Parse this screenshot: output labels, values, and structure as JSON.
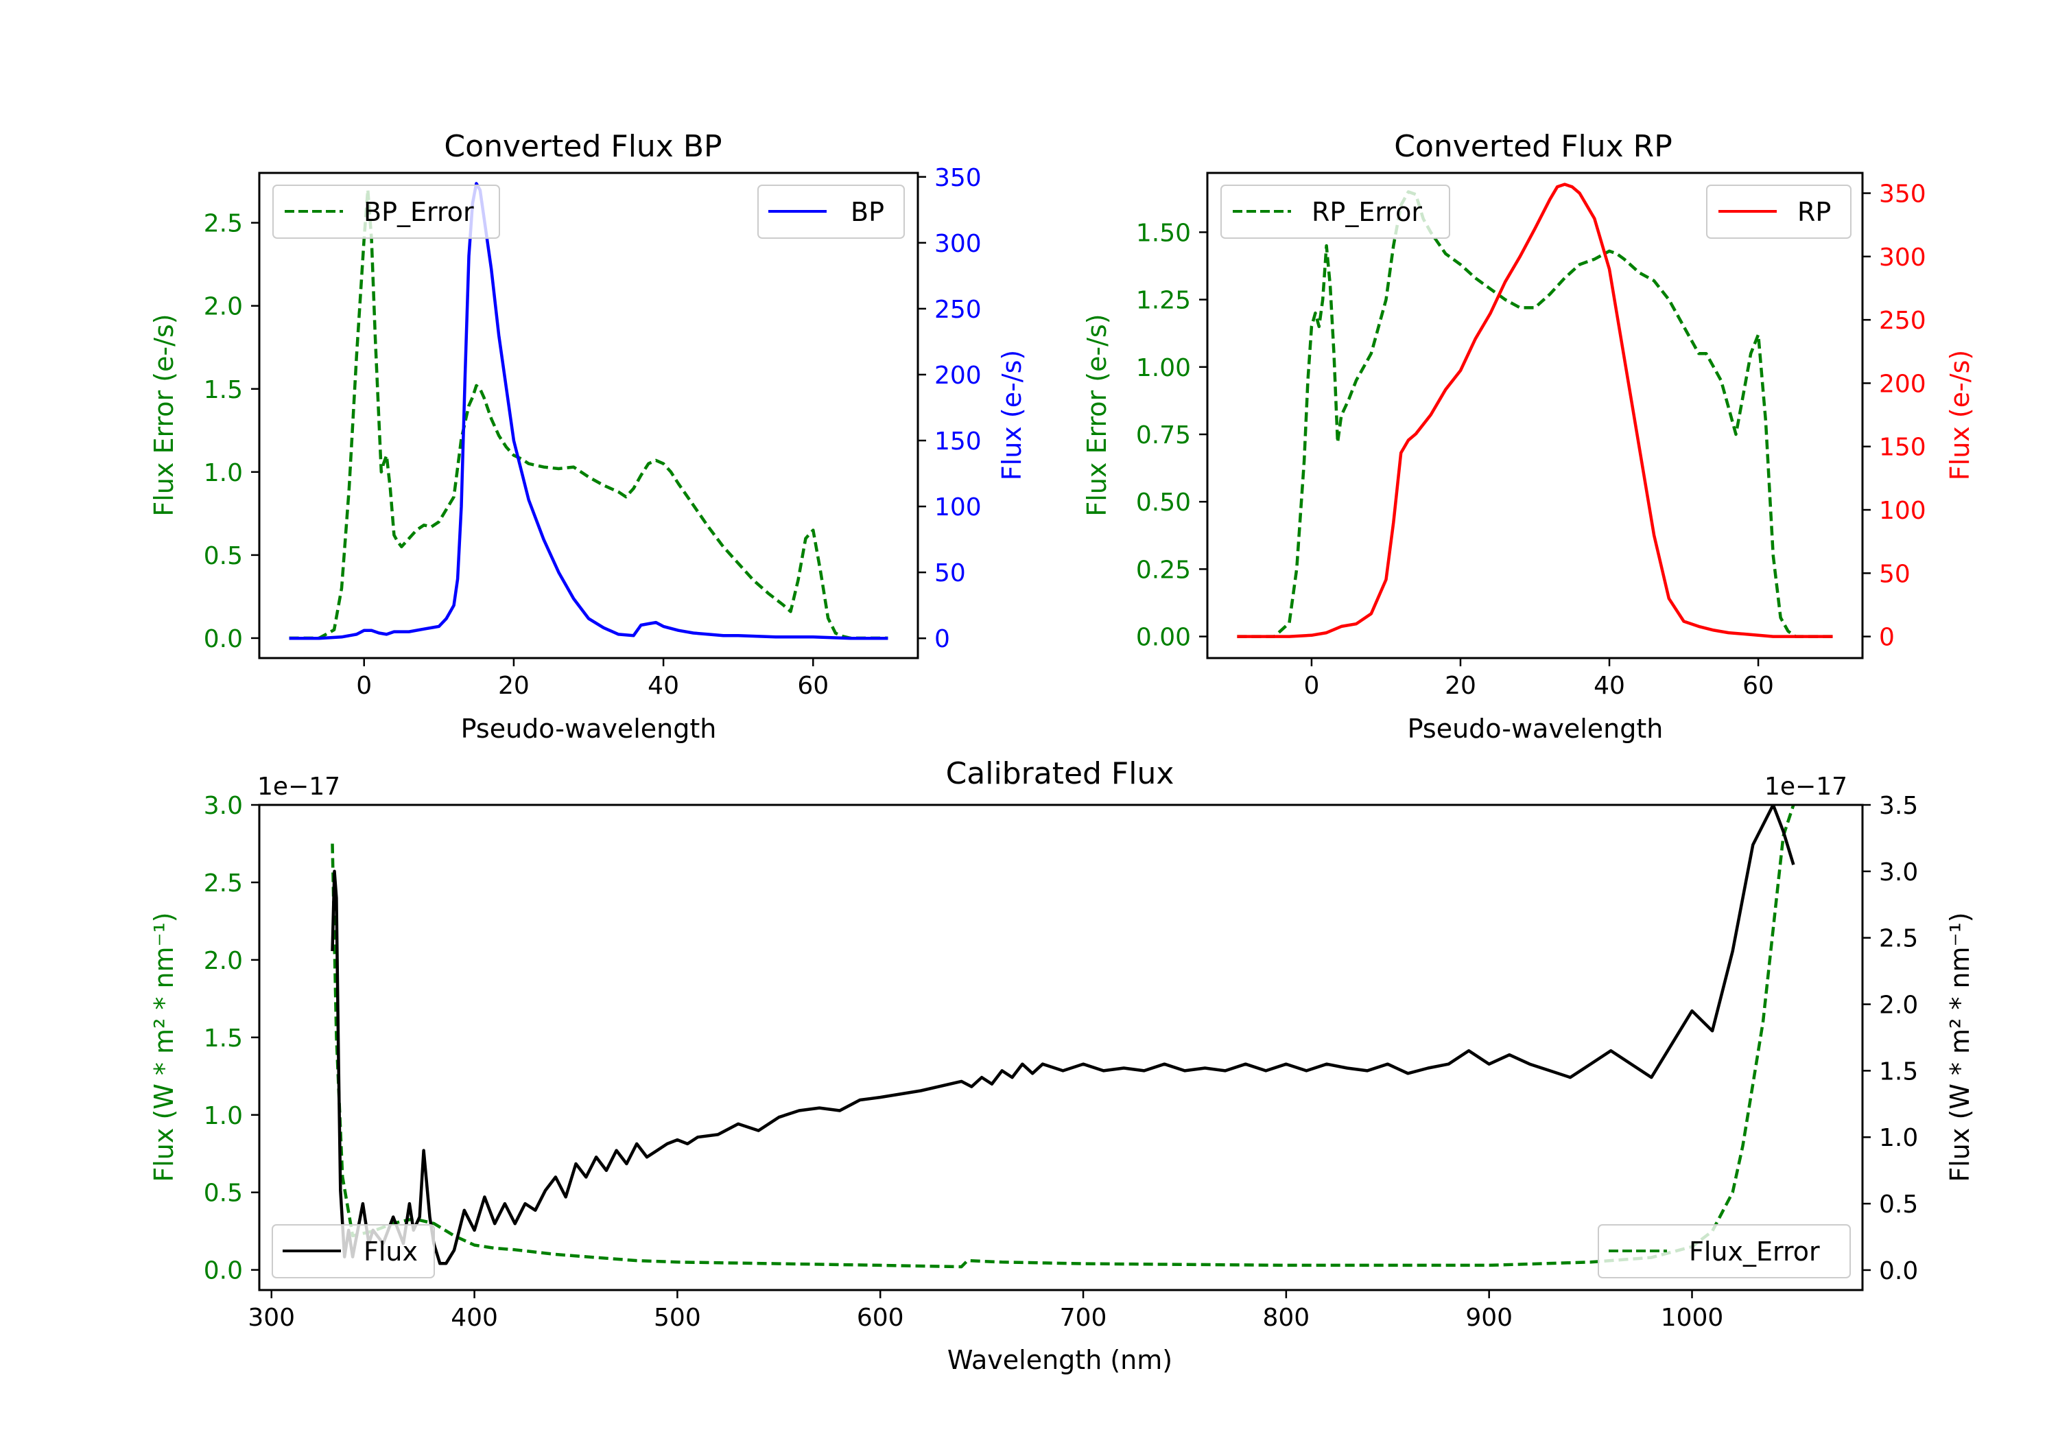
{
  "colors": {
    "bp": "#0000ff",
    "rp": "#ff0000",
    "error": "#008000",
    "flux": "#000000"
  },
  "chart_data": [
    {
      "type": "line",
      "title": "Converted Flux BP",
      "xlabel": "Pseudo-wavelength",
      "ylabel_left": "Flux Error (e-/s)",
      "ylabel_right": "Flux (e-/s)",
      "xlim": [
        -14,
        74
      ],
      "ylim_left": [
        -0.12,
        2.8
      ],
      "ylim_right": [
        -15,
        353
      ],
      "xticks": [
        0,
        20,
        40,
        60
      ],
      "yticks_left": [
        "0.0",
        "0.5",
        "1.0",
        "1.5",
        "2.0",
        "2.5"
      ],
      "yticks_right": [
        "0",
        "50",
        "100",
        "150",
        "200",
        "250",
        "300",
        "350"
      ],
      "legend_left": "BP_Error",
      "legend_right": "BP",
      "series": [
        {
          "name": "BP_Error",
          "axis": "left",
          "style": "dashed",
          "x": [
            -10,
            -6,
            -4,
            -3,
            -2,
            -1,
            0,
            0.5,
            1,
            1.5,
            2,
            2.3,
            2.6,
            3,
            3.5,
            4,
            4.5,
            5,
            6,
            7,
            8,
            9,
            10,
            12,
            13,
            14,
            14.5,
            15,
            15.5,
            16,
            17,
            18,
            19,
            20,
            21,
            22,
            24,
            26,
            28,
            30,
            32,
            34,
            35,
            36,
            37,
            38,
            39,
            40,
            41,
            42,
            44,
            46,
            48,
            50,
            52,
            54,
            56,
            57,
            58,
            59,
            60,
            61,
            62,
            63,
            64,
            65,
            66,
            70
          ],
          "y": [
            0,
            0,
            0.05,
            0.3,
            0.9,
            1.7,
            2.4,
            2.7,
            2.4,
            1.8,
            1.3,
            1.0,
            1.05,
            1.1,
            0.9,
            0.62,
            0.58,
            0.55,
            0.6,
            0.65,
            0.68,
            0.67,
            0.7,
            0.85,
            1.2,
            1.4,
            1.45,
            1.52,
            1.5,
            1.45,
            1.32,
            1.22,
            1.15,
            1.1,
            1.08,
            1.05,
            1.03,
            1.02,
            1.03,
            0.97,
            0.92,
            0.88,
            0.85,
            0.9,
            0.98,
            1.05,
            1.07,
            1.05,
            1.0,
            0.93,
            0.8,
            0.67,
            0.55,
            0.45,
            0.35,
            0.27,
            0.2,
            0.16,
            0.35,
            0.6,
            0.65,
            0.4,
            0.12,
            0.03,
            0.01,
            0,
            0,
            0
          ]
        },
        {
          "name": "BP",
          "axis": "right",
          "style": "solid",
          "x": [
            -10,
            -6,
            -3,
            -1,
            0,
            1,
            2,
            3,
            4,
            6,
            8,
            10,
            11,
            12,
            12.5,
            13,
            13.5,
            14,
            14.5,
            15,
            15.5,
            16,
            17,
            18,
            19,
            20,
            22,
            24,
            26,
            28,
            30,
            32,
            34,
            36,
            37,
            38,
            39,
            40,
            42,
            44,
            46,
            48,
            50,
            55,
            60,
            65,
            70
          ],
          "y": [
            0,
            0,
            1,
            3,
            6,
            6,
            4,
            3,
            5,
            5,
            7,
            9,
            15,
            25,
            45,
            100,
            200,
            290,
            330,
            345,
            340,
            320,
            280,
            230,
            190,
            150,
            105,
            75,
            50,
            30,
            15,
            8,
            3,
            2,
            10,
            11,
            12,
            9,
            6,
            4,
            3,
            2,
            2,
            1,
            1,
            0,
            0
          ]
        }
      ]
    },
    {
      "type": "line",
      "title": "Converted Flux RP",
      "xlabel": "Pseudo-wavelength",
      "ylabel_left": "Flux Error (e-/s)",
      "ylabel_right": "Flux (e-/s)",
      "xlim": [
        -14,
        74
      ],
      "ylim_left": [
        -0.08,
        1.72
      ],
      "ylim_right": [
        -17,
        366
      ],
      "xticks": [
        0,
        20,
        40,
        60
      ],
      "yticks_left": [
        "0.00",
        "0.25",
        "0.50",
        "0.75",
        "1.00",
        "1.25",
        "1.50"
      ],
      "yticks_right": [
        "0",
        "50",
        "100",
        "150",
        "200",
        "250",
        "300",
        "350"
      ],
      "legend_left": "RP_Error",
      "legend_right": "RP",
      "series": [
        {
          "name": "RP_Error",
          "axis": "left",
          "style": "dashed",
          "x": [
            -10,
            -5,
            -3,
            -2,
            -1,
            -0.5,
            0,
            0.5,
            1,
            1.5,
            2,
            2.5,
            3,
            3.5,
            4,
            4.5,
            5,
            6,
            8,
            10,
            11,
            12,
            13,
            14,
            15,
            16,
            18,
            20,
            22,
            24,
            26,
            28,
            30,
            32,
            34,
            36,
            38,
            40,
            41,
            42,
            44,
            46,
            48,
            50,
            52,
            53,
            54,
            55,
            56,
            57,
            58,
            59,
            60,
            61,
            62,
            63,
            64,
            65,
            70
          ],
          "y": [
            0,
            0,
            0.05,
            0.25,
            0.65,
            0.95,
            1.15,
            1.2,
            1.15,
            1.25,
            1.45,
            1.3,
            1.05,
            0.72,
            0.82,
            0.85,
            0.88,
            0.95,
            1.05,
            1.25,
            1.45,
            1.6,
            1.65,
            1.64,
            1.55,
            1.5,
            1.42,
            1.38,
            1.33,
            1.29,
            1.25,
            1.22,
            1.22,
            1.27,
            1.33,
            1.38,
            1.4,
            1.43,
            1.42,
            1.4,
            1.35,
            1.32,
            1.25,
            1.15,
            1.05,
            1.05,
            1.0,
            0.95,
            0.85,
            0.75,
            0.9,
            1.05,
            1.12,
            0.8,
            0.3,
            0.07,
            0.02,
            0,
            0
          ]
        },
        {
          "name": "RP",
          "axis": "right",
          "style": "solid",
          "x": [
            -10,
            -3,
            0,
            2,
            4,
            6,
            8,
            10,
            11,
            12,
            13,
            14,
            16,
            18,
            20,
            22,
            24,
            26,
            28,
            30,
            32,
            33,
            34,
            35,
            36,
            38,
            40,
            42,
            44,
            46,
            48,
            50,
            52,
            54,
            56,
            58,
            60,
            62,
            64,
            66,
            70
          ],
          "y": [
            0,
            0,
            1,
            3,
            8,
            10,
            18,
            45,
            90,
            145,
            155,
            160,
            175,
            195,
            210,
            235,
            255,
            280,
            300,
            322,
            345,
            355,
            357,
            355,
            350,
            330,
            290,
            220,
            150,
            80,
            30,
            12,
            8,
            5,
            3,
            2,
            1,
            0,
            0,
            0,
            0
          ]
        }
      ]
    },
    {
      "type": "line",
      "title": "Calibrated Flux",
      "xlabel": "Wavelength (nm)",
      "ylabel_left": "Flux (W * m² * nm⁻¹)",
      "ylabel_right": "Flux (W * m² * nm⁻¹)",
      "offset_left": "1e−17",
      "offset_right": "1e−17",
      "xlim": [
        294,
        1084
      ],
      "ylim_left": [
        -0.13,
        3.0
      ],
      "ylim_right": [
        -0.15,
        3.5
      ],
      "xticks": [
        300,
        400,
        500,
        600,
        700,
        800,
        900,
        1000
      ],
      "yticks_left": [
        "0.0",
        "0.5",
        "1.0",
        "1.5",
        "2.0",
        "2.5",
        "3.0"
      ],
      "yticks_right": [
        "0.0",
        "0.5",
        "1.0",
        "1.5",
        "2.0",
        "2.5",
        "3.0",
        "3.5"
      ],
      "legend_left": "Flux",
      "legend_right": "Flux_Error",
      "series": [
        {
          "name": "Flux_Error",
          "axis": "left",
          "style": "dashed",
          "x": [
            330,
            332,
            335,
            340,
            350,
            360,
            370,
            380,
            390,
            400,
            410,
            420,
            440,
            460,
            480,
            500,
            550,
            600,
            640,
            643,
            660,
            700,
            800,
            900,
            950,
            980,
            1000,
            1010,
            1020,
            1025,
            1030,
            1035,
            1040,
            1045,
            1050
          ],
          "y": [
            2.75,
            1.5,
            0.6,
            0.22,
            0.25,
            0.3,
            0.33,
            0.3,
            0.22,
            0.16,
            0.14,
            0.13,
            0.1,
            0.08,
            0.06,
            0.05,
            0.04,
            0.03,
            0.02,
            0.06,
            0.05,
            0.04,
            0.03,
            0.03,
            0.05,
            0.08,
            0.15,
            0.25,
            0.5,
            0.8,
            1.2,
            1.6,
            2.2,
            2.8,
            3.0
          ]
        },
        {
          "name": "Flux",
          "axis": "right",
          "style": "solid",
          "x": [
            330,
            331,
            332,
            333,
            334,
            336,
            338,
            340,
            345,
            348,
            350,
            355,
            360,
            365,
            368,
            370,
            373,
            375,
            378,
            380,
            383,
            386,
            390,
            395,
            400,
            405,
            410,
            415,
            420,
            425,
            430,
            435,
            440,
            445,
            450,
            455,
            460,
            465,
            470,
            475,
            480,
            485,
            490,
            495,
            500,
            505,
            510,
            520,
            530,
            540,
            550,
            560,
            570,
            580,
            590,
            600,
            620,
            640,
            645,
            650,
            655,
            660,
            665,
            670,
            675,
            680,
            690,
            700,
            710,
            720,
            730,
            740,
            750,
            760,
            770,
            780,
            790,
            800,
            810,
            820,
            830,
            840,
            850,
            860,
            870,
            880,
            890,
            900,
            910,
            920,
            930,
            940,
            950,
            960,
            970,
            980,
            990,
            1000,
            1010,
            1020,
            1030,
            1040,
            1045,
            1050
          ],
          "y": [
            2.4,
            3.0,
            2.8,
            1.6,
            0.6,
            0.1,
            0.3,
            0.1,
            0.5,
            0.2,
            0.3,
            0.2,
            0.4,
            0.2,
            0.5,
            0.3,
            0.4,
            0.9,
            0.4,
            0.2,
            0.05,
            0.05,
            0.15,
            0.45,
            0.3,
            0.55,
            0.35,
            0.5,
            0.35,
            0.5,
            0.45,
            0.6,
            0.7,
            0.55,
            0.8,
            0.7,
            0.85,
            0.75,
            0.9,
            0.8,
            0.95,
            0.85,
            0.9,
            0.95,
            0.98,
            0.95,
            1.0,
            1.02,
            1.1,
            1.05,
            1.15,
            1.2,
            1.22,
            1.2,
            1.28,
            1.3,
            1.35,
            1.42,
            1.38,
            1.45,
            1.4,
            1.5,
            1.45,
            1.55,
            1.48,
            1.55,
            1.5,
            1.55,
            1.5,
            1.52,
            1.5,
            1.55,
            1.5,
            1.52,
            1.5,
            1.55,
            1.5,
            1.55,
            1.5,
            1.55,
            1.52,
            1.5,
            1.55,
            1.48,
            1.52,
            1.55,
            1.65,
            1.55,
            1.62,
            1.55,
            1.5,
            1.45,
            1.55,
            1.65,
            1.55,
            1.45,
            1.7,
            1.95,
            1.8,
            2.4,
            3.2,
            3.5,
            3.3,
            3.05
          ]
        }
      ]
    }
  ]
}
